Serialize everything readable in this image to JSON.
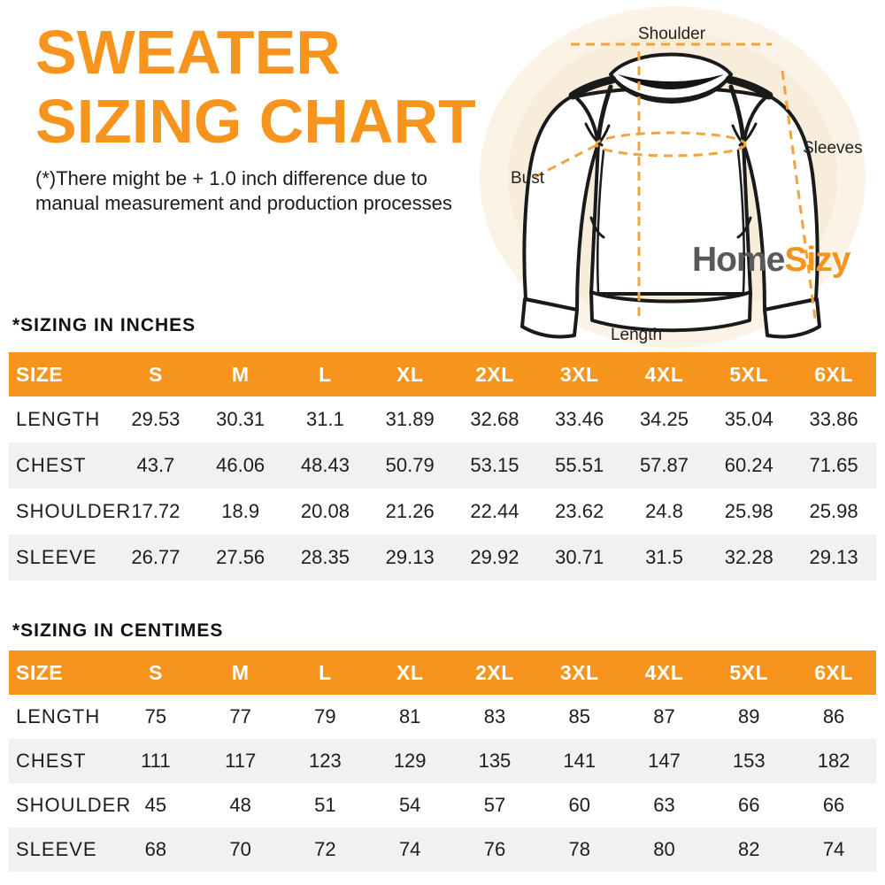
{
  "header": {
    "title_line1": "SWEATER",
    "title_line2": "SIZING CHART",
    "disclaimer_line1": "(*)There might be + 1.0 inch difference due to",
    "disclaimer_line2": "manual measurement and production processes"
  },
  "diagram": {
    "labels": {
      "shoulder": "Shoulder",
      "sleeves": "Sleeves",
      "bust": "Bust",
      "length": "Length"
    }
  },
  "logo": {
    "part1": "Home",
    "part2": "Sizy"
  },
  "colors": {
    "accent_orange": "#F7941E",
    "dash_orange": "#F2A43C",
    "logo_gray": "#58595B",
    "row_stripe": "#F1F1F2",
    "circle_outer": "#FBF3E6",
    "circle_inner": "#F8EDDB",
    "outline_black": "#1A1A1A"
  },
  "tables": [
    {
      "title": "*SIZING IN INCHES",
      "columns": [
        "SIZE",
        "S",
        "M",
        "L",
        "XL",
        "2XL",
        "3XL",
        "4XL",
        "5XL",
        "6XL"
      ],
      "rows": [
        {
          "label": "LENGTH",
          "values": [
            "29.53",
            "30.31",
            "31.1",
            "31.89",
            "32.68",
            "33.46",
            "34.25",
            "35.04",
            "33.86"
          ]
        },
        {
          "label": "CHEST",
          "values": [
            "43.7",
            "46.06",
            "48.43",
            "50.79",
            "53.15",
            "55.51",
            "57.87",
            "60.24",
            "71.65"
          ]
        },
        {
          "label": "SHOULDER",
          "values": [
            "17.72",
            "18.9",
            "20.08",
            "21.26",
            "22.44",
            "23.62",
            "24.8",
            "25.98",
            "25.98"
          ]
        },
        {
          "label": "SLEEVE",
          "values": [
            "26.77",
            "27.56",
            "28.35",
            "29.13",
            "29.92",
            "30.71",
            "31.5",
            "32.28",
            "29.13"
          ]
        }
      ]
    },
    {
      "title": "*SIZING IN CENTIMES",
      "columns": [
        "SIZE",
        "S",
        "M",
        "L",
        "XL",
        "2XL",
        "3XL",
        "4XL",
        "5XL",
        "6XL"
      ],
      "rows": [
        {
          "label": "LENGTH",
          "values": [
            "75",
            "77",
            "79",
            "81",
            "83",
            "85",
            "87",
            "89",
            "86"
          ]
        },
        {
          "label": "CHEST",
          "values": [
            "111",
            "117",
            "123",
            "129",
            "135",
            "141",
            "147",
            "153",
            "182"
          ]
        },
        {
          "label": "SHOULDER",
          "values": [
            "45",
            "48",
            "51",
            "54",
            "57",
            "60",
            "63",
            "66",
            "66"
          ]
        },
        {
          "label": "SLEEVE",
          "values": [
            "68",
            "70",
            "72",
            "74",
            "76",
            "78",
            "80",
            "82",
            "74"
          ]
        }
      ]
    }
  ]
}
